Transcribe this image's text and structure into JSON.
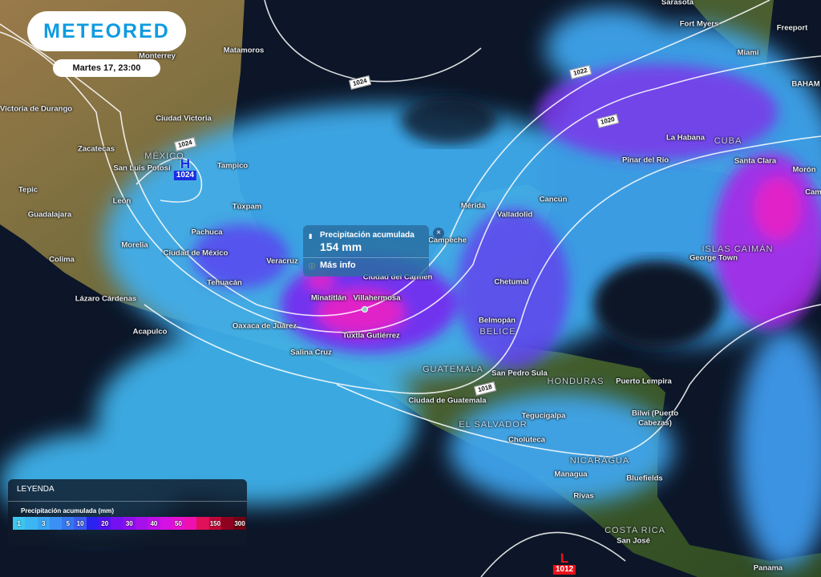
{
  "header": {
    "logo": "METEORED",
    "datetime": "Martes 17, 23:00"
  },
  "popup": {
    "title": "Precipitación acumulada",
    "value": "154 mm",
    "more": "Más info",
    "close": "×",
    "icon": "rain-gauge-icon",
    "info_icon": "info-icon"
  },
  "pressure": {
    "high": {
      "letter": "H",
      "value": "1024",
      "color": "#1a2ee0"
    },
    "low": {
      "letter": "L",
      "value": "1012",
      "color": "#e8121a"
    }
  },
  "isobars": [
    "1024",
    "1022",
    "1020",
    "1018",
    "1024"
  ],
  "places": [
    {
      "n": "Sarasota"
    },
    {
      "n": "Fort Myers"
    },
    {
      "n": "Miami"
    },
    {
      "n": "Freeport"
    },
    {
      "n": "BAHAM"
    },
    {
      "n": "Monterrey"
    },
    {
      "n": "Matamoros"
    },
    {
      "n": "Victoria de Durango"
    },
    {
      "n": "Ciudad Victoria"
    },
    {
      "n": "MÉXICO",
      "c": 1
    },
    {
      "n": "Zacatecas"
    },
    {
      "n": "San Luis Potosí"
    },
    {
      "n": "Tampico"
    },
    {
      "n": "Tepic"
    },
    {
      "n": "León"
    },
    {
      "n": "Guadalajara"
    },
    {
      "n": "Túxpam"
    },
    {
      "n": "Pachuca"
    },
    {
      "n": "Morelia"
    },
    {
      "n": "Ciudad de México"
    },
    {
      "n": "Colima"
    },
    {
      "n": "Veracruz"
    },
    {
      "n": "Tehuacán"
    },
    {
      "n": "Lázaro Cárdenas"
    },
    {
      "n": "Minatitlán"
    },
    {
      "n": "Villahermosa"
    },
    {
      "n": "Oaxaca de Juárez"
    },
    {
      "n": "Acapulco"
    },
    {
      "n": "Tuxtla Gutiérrez"
    },
    {
      "n": "Salina Cruz"
    },
    {
      "n": "Ciudad del Carmen"
    },
    {
      "n": "Campeche"
    },
    {
      "n": "Mérida"
    },
    {
      "n": "Valladolid"
    },
    {
      "n": "Cancún"
    },
    {
      "n": "Chetumal"
    },
    {
      "n": "Belmopán"
    },
    {
      "n": "BELICE",
      "c": 1
    },
    {
      "n": "GUATEMALA",
      "c": 1
    },
    {
      "n": "San Pedro Sula"
    },
    {
      "n": "HONDURAS",
      "c": 1
    },
    {
      "n": "Ciudad de Guatemala"
    },
    {
      "n": "Puerto Lempira"
    },
    {
      "n": "Bilwi (Puerto"
    },
    {
      "n": "Cabezas)"
    },
    {
      "n": "Tegucigalpa"
    },
    {
      "n": "EL SALVADOR",
      "c": 1
    },
    {
      "n": "Choluteca"
    },
    {
      "n": "NICARAGUA",
      "c": 1
    },
    {
      "n": "Managua"
    },
    {
      "n": "Bluefields"
    },
    {
      "n": "Rivas"
    },
    {
      "n": "COSTA RICA",
      "c": 1
    },
    {
      "n": "San José"
    },
    {
      "n": "Panama"
    },
    {
      "n": "La Habana"
    },
    {
      "n": "CUBA",
      "c": 1
    },
    {
      "n": "Pinar del Río"
    },
    {
      "n": "Santa Clara"
    },
    {
      "n": "Morón"
    },
    {
      "n": "Camag"
    },
    {
      "n": "ISLAS CAIMÁN",
      "c": 1
    },
    {
      "n": "George Town"
    }
  ],
  "legend": {
    "title": "LEYENDA",
    "subtitle": "Precipitación acumulada (mm)",
    "scale": [
      {
        "l": "1",
        "c": "#3cc6ef"
      },
      {
        "l": "",
        "c": "#3cb6f2"
      },
      {
        "l": "3",
        "c": "#3aa5f4"
      },
      {
        "l": "",
        "c": "#3a90f4"
      },
      {
        "l": "5",
        "c": "#3677f2"
      },
      {
        "l": "10",
        "c": "#3a5cf0"
      },
      {
        "l": "",
        "c": "#2a22f0"
      },
      {
        "l": "20",
        "c": "#5512f0"
      },
      {
        "l": "",
        "c": "#7510f0"
      },
      {
        "l": "30",
        "c": "#8e10ee"
      },
      {
        "l": "",
        "c": "#a610ea"
      },
      {
        "l": "40",
        "c": "#be10e8"
      },
      {
        "l": "",
        "c": "#d510e2"
      },
      {
        "l": "50",
        "c": "#e810d2"
      },
      {
        "l": "",
        "c": "#f010b0"
      },
      {
        "l": "",
        "c": "#e0105a"
      },
      {
        "l": "150",
        "c": "#c00838"
      },
      {
        "l": "",
        "c": "#900020"
      },
      {
        "l": "300",
        "c": "#700012"
      }
    ]
  }
}
